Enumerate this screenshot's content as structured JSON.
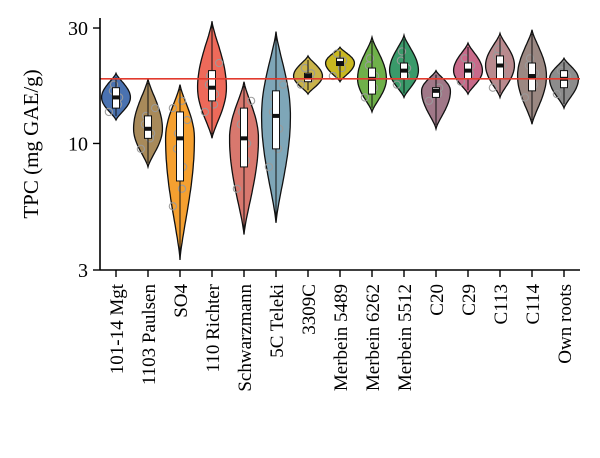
{
  "chart_data": {
    "type": "violin",
    "title": "",
    "xlabel": "",
    "ylabel": "TPC (mg GAE/g)",
    "y_scale": "log",
    "ylim": [
      3,
      33
    ],
    "y_ticks": [
      3,
      10,
      30
    ],
    "y_tick_labels": [
      "3",
      "10",
      "30"
    ],
    "reference_line": {
      "y": 18.5,
      "color": "#e23b2e"
    },
    "categories": [
      {
        "name": "101-14 Mgt",
        "color": "#4a72b0",
        "min": 12.5,
        "max": 19.5,
        "q1": 14.0,
        "median": 15.5,
        "q3": 17.0,
        "points": [
          13.5,
          14.5,
          15.5,
          16.5,
          17.5
        ]
      },
      {
        "name": "1103 Paulsen",
        "color": "#a88a5a",
        "min": 8.0,
        "max": 18.5,
        "q1": 10.5,
        "median": 11.5,
        "q3": 13.0,
        "points": [
          9.5,
          10.5,
          11.0,
          12.0,
          13.0,
          14.0
        ]
      },
      {
        "name": "SO4",
        "color": "#f5a030",
        "min": 3.3,
        "max": 17.5,
        "q1": 7.0,
        "median": 10.5,
        "q3": 13.5,
        "points": [
          5.5,
          6.5,
          8.0,
          9.5,
          11.0,
          12.5,
          14.0,
          15.0
        ]
      },
      {
        "name": "110 Richter",
        "color": "#ee6a5a",
        "min": 10.5,
        "max": 32.0,
        "q1": 15.0,
        "median": 17.0,
        "q3": 20.0,
        "points": [
          13.5,
          14.5,
          16.0,
          17.5,
          19.0,
          21.5
        ]
      },
      {
        "name": "Schwarzmann",
        "color": "#d8786e",
        "min": 4.2,
        "max": 18.0,
        "q1": 8.0,
        "median": 10.5,
        "q3": 14.0,
        "points": [
          6.5,
          8.5,
          10.0,
          12.0,
          13.5,
          15.0
        ]
      },
      {
        "name": "5C Teleki",
        "color": "#7ea6b8",
        "min": 4.7,
        "max": 29.0,
        "q1": 9.5,
        "median": 13.0,
        "q3": 16.5,
        "points": [
          8.0,
          9.5,
          11.5,
          13.5,
          15.5,
          17.5
        ]
      },
      {
        "name": "3309C",
        "color": "#c9b34a",
        "min": 16.0,
        "max": 23.0,
        "q1": 18.0,
        "median": 19.0,
        "q3": 19.5,
        "points": [
          17.5,
          18.5,
          19.5,
          20.5
        ]
      },
      {
        "name": "Merbein 5489",
        "color": "#c9b820",
        "min": 18.0,
        "max": 25.0,
        "q1": 21.0,
        "median": 21.5,
        "q3": 22.5,
        "points": [
          19.0,
          20.5,
          22.0,
          23.5
        ]
      },
      {
        "name": "Merbein 6262",
        "color": "#6fb04a",
        "min": 13.5,
        "max": 27.5,
        "q1": 16.0,
        "median": 18.5,
        "q3": 20.5,
        "points": [
          15.5,
          17.0,
          19.0,
          21.0,
          22.5
        ]
      },
      {
        "name": "Merbein 5512",
        "color": "#3a9a6a",
        "min": 15.5,
        "max": 28.0,
        "q1": 18.5,
        "median": 20.0,
        "q3": 21.5,
        "points": [
          17.5,
          19.0,
          20.5,
          22.0,
          24.0
        ]
      },
      {
        "name": "C20",
        "color": "#a07888",
        "min": 11.5,
        "max": 20.0,
        "q1": 15.5,
        "median": 16.5,
        "q3": 17.0,
        "points": [
          15.0,
          16.0,
          17.0
        ]
      },
      {
        "name": "C29",
        "color": "#c86a8a",
        "min": 16.0,
        "max": 26.0,
        "q1": 18.5,
        "median": 20.0,
        "q3": 21.5,
        "points": [
          18.0,
          19.5,
          21.0,
          22.5
        ]
      },
      {
        "name": "C113",
        "color": "#b98a8e",
        "min": 15.5,
        "max": 28.5,
        "q1": 18.5,
        "median": 21.0,
        "q3": 23.0,
        "points": [
          17.0,
          19.0,
          21.0,
          23.0,
          24.5
        ]
      },
      {
        "name": "C114",
        "color": "#9b8882",
        "min": 12.0,
        "max": 29.5,
        "q1": 16.5,
        "median": 19.0,
        "q3": 21.5,
        "points": [
          15.5,
          17.5,
          19.5,
          21.0,
          22.5
        ]
      },
      {
        "name": "Own roots",
        "color": "#8c8c8c",
        "min": 14.0,
        "max": 22.5,
        "q1": 17.0,
        "median": 18.5,
        "q3": 20.0,
        "points": [
          16.0,
          17.5,
          19.0,
          20.0
        ]
      }
    ]
  }
}
